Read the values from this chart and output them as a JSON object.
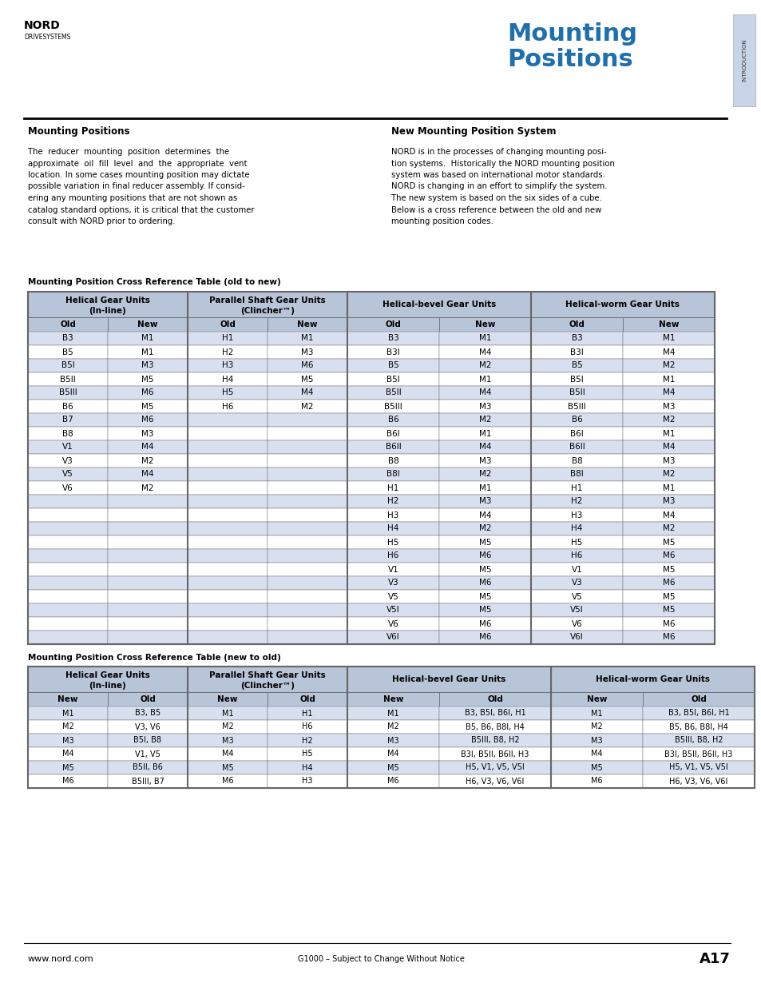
{
  "page_bg": "#ffffff",
  "title_blue": "#1e6fad",
  "table_header_bg": "#b8c4d8",
  "table_row_alt_bg": "#d8dfee",
  "table_row_bg": "#ffffff",
  "table_border": "#666666",
  "left_heading": "Mounting Positions",
  "right_heading": "New Mounting Position System",
  "table1_title": "Mounting Position Cross Reference Table (old to new)",
  "table2_title": "Mounting Position Cross Reference Table (new to old)",
  "col_headers": [
    "Helical Gear Units\n(In-line)",
    "Parallel Shaft Gear Units\n(Clincher™)",
    "Helical-bevel Gear Units",
    "Helical-worm Gear Units"
  ],
  "subheaders_old_new": [
    "Old",
    "New",
    "Old",
    "New",
    "Old",
    "New",
    "Old",
    "New"
  ],
  "subheaders_new_old": [
    "New",
    "Old",
    "New",
    "Old",
    "New",
    "Old",
    "New",
    "Old"
  ],
  "table1_data": [
    [
      "B3",
      "M1",
      "H1",
      "M1",
      "B3",
      "M1",
      "B3",
      "M1"
    ],
    [
      "B5",
      "M1",
      "H2",
      "M3",
      "B3I",
      "M4",
      "B3I",
      "M4"
    ],
    [
      "B5I",
      "M3",
      "H3",
      "M6",
      "B5",
      "M2",
      "B5",
      "M2"
    ],
    [
      "B5II",
      "M5",
      "H4",
      "M5",
      "B5I",
      "M1",
      "B5I",
      "M1"
    ],
    [
      "B5III",
      "M6",
      "H5",
      "M4",
      "B5II",
      "M4",
      "B5II",
      "M4"
    ],
    [
      "B6",
      "M5",
      "H6",
      "M2",
      "B5III",
      "M3",
      "B5III",
      "M3"
    ],
    [
      "B7",
      "M6",
      "",
      "",
      "B6",
      "M2",
      "B6",
      "M2"
    ],
    [
      "B8",
      "M3",
      "",
      "",
      "B6I",
      "M1",
      "B6I",
      "M1"
    ],
    [
      "V1",
      "M4",
      "",
      "",
      "B6II",
      "M4",
      "B6II",
      "M4"
    ],
    [
      "V3",
      "M2",
      "",
      "",
      "B8",
      "M3",
      "B8",
      "M3"
    ],
    [
      "V5",
      "M4",
      "",
      "",
      "B8I",
      "M2",
      "B8I",
      "M2"
    ],
    [
      "V6",
      "M2",
      "",
      "",
      "H1",
      "M1",
      "H1",
      "M1"
    ],
    [
      "",
      "",
      "",
      "",
      "H2",
      "M3",
      "H2",
      "M3"
    ],
    [
      "",
      "",
      "",
      "",
      "H3",
      "M4",
      "H3",
      "M4"
    ],
    [
      "",
      "",
      "",
      "",
      "H4",
      "M2",
      "H4",
      "M2"
    ],
    [
      "",
      "",
      "",
      "",
      "H5",
      "M5",
      "H5",
      "M5"
    ],
    [
      "",
      "",
      "",
      "",
      "H6",
      "M6",
      "H6",
      "M6"
    ],
    [
      "",
      "",
      "",
      "",
      "V1",
      "M5",
      "V1",
      "M5"
    ],
    [
      "",
      "",
      "",
      "",
      "V3",
      "M6",
      "V3",
      "M6"
    ],
    [
      "",
      "",
      "",
      "",
      "V5",
      "M5",
      "V5",
      "M5"
    ],
    [
      "",
      "",
      "",
      "",
      "V5I",
      "M5",
      "V5I",
      "M5"
    ],
    [
      "",
      "",
      "",
      "",
      "V6",
      "M6",
      "V6",
      "M6"
    ],
    [
      "",
      "",
      "",
      "",
      "V6I",
      "M6",
      "V6I",
      "M6"
    ]
  ],
  "table2_data": [
    [
      "M1",
      "B3, B5",
      "M1",
      "H1",
      "M1",
      "B3, B5I, B6I, H1",
      "M1",
      "B3, B5I, B6I, H1"
    ],
    [
      "M2",
      "V3, V6",
      "M2",
      "H6",
      "M2",
      "B5, B6, B8I, H4",
      "M2",
      "B5, B6, B8I, H4"
    ],
    [
      "M3",
      "B5I, B8",
      "M3",
      "H2",
      "M3",
      "B5III, B8, H2",
      "M3",
      "B5III, B8, H2"
    ],
    [
      "M4",
      "V1, V5",
      "M4",
      "H5",
      "M4",
      "B3I, B5II, B6II, H3",
      "M4",
      "B3I, B5II, B6II, H3"
    ],
    [
      "M5",
      "B5II, B6",
      "M5",
      "H4",
      "M5",
      "H5, V1, V5, V5I",
      "M5",
      "H5, V1, V5, V5I"
    ],
    [
      "M6",
      "B5III, B7",
      "M6",
      "H3",
      "M6",
      "H6, V3, V6, V6I",
      "M6",
      "H6, V3, V6, V6I"
    ]
  ],
  "footer_left": "www.nord.com",
  "footer_center": "G1000 – Subject to Change Without Notice",
  "footer_right": "A17",
  "left_col_lines": [
    "The  reducer  mounting  position  determines  the",
    "approximate  oil  fill  level  and  the  appropriate  vent",
    "location. In some cases mounting position may dictate",
    "possible variation in final reducer assembly. If consid-",
    "ering any mounting positions that are not shown as",
    "catalog standard options, it is critical that the customer",
    "consult with NORD prior to ordering."
  ],
  "right_col_lines": [
    "NORD is in the processes of changing mounting posi-",
    "tion systems.  Historically the NORD mounting position",
    "system was based on international motor standards.",
    "NORD is changing in an effort to simplify the system.",
    "The new system is based on the six sides of a cube.",
    "Below is a cross reference between the old and new",
    "mounting position codes."
  ]
}
